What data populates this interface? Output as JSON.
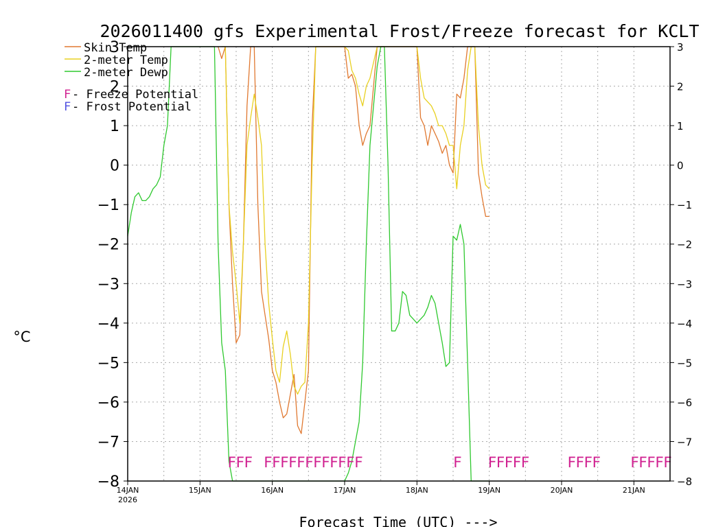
{
  "chart_data": {
    "type": "line",
    "title": "2026011400 gfs Experimental Frost/Freeze forecast for KCLT",
    "ylabel": "°C",
    "xlabel": "Forecast Time (UTC) --->",
    "ylim": [
      -8,
      3
    ],
    "yticks": [
      -8,
      -7,
      -6,
      -5,
      -4,
      -3,
      -2,
      -1,
      0,
      1,
      2,
      3
    ],
    "xlim_days": [
      0,
      7.5
    ],
    "xticks": [
      {
        "day": 0,
        "label": "14JAN",
        "sublabel": "2026"
      },
      {
        "day": 1,
        "label": "15JAN",
        "sublabel": ""
      },
      {
        "day": 2,
        "label": "16JAN",
        "sublabel": ""
      },
      {
        "day": 3,
        "label": "17JAN",
        "sublabel": ""
      },
      {
        "day": 4,
        "label": "18JAN",
        "sublabel": ""
      },
      {
        "day": 5,
        "label": "19JAN",
        "sublabel": ""
      },
      {
        "day": 6,
        "label": "20JAN",
        "sublabel": ""
      },
      {
        "day": 7,
        "label": "21JAN",
        "sublabel": ""
      }
    ],
    "grid": true,
    "legend": {
      "placement": "top-left",
      "entries": [
        {
          "label": "Skin Temp",
          "color": "#e07830"
        },
        {
          "label": "2-meter Temp",
          "color": "#e8d020"
        },
        {
          "label": "2-meter Dewp",
          "color": "#2ec82e"
        }
      ],
      "markers": [
        {
          "letter": "F",
          "text": " - Freeze Potential",
          "color": "#d02090"
        },
        {
          "letter": "F",
          "text": " - Frost Potential",
          "color": "#5050e0"
        }
      ]
    },
    "series": [
      {
        "name": "Skin Temp",
        "color": "#e07830",
        "x": [
          1.25,
          1.3,
          1.35,
          1.4,
          1.45,
          1.5,
          1.55,
          1.6,
          1.65,
          1.7,
          1.75,
          1.8,
          1.85,
          1.9,
          1.95,
          2.0,
          2.05,
          2.1,
          2.15,
          2.2,
          2.25,
          2.3,
          2.35,
          2.4,
          2.45,
          2.5,
          2.55,
          2.6,
          2.65,
          2.7,
          2.75,
          2.8,
          3.0,
          3.05,
          3.1,
          3.15,
          3.2,
          3.25,
          3.3,
          3.35,
          3.4,
          3.45,
          3.5,
          4.0,
          4.05,
          4.1,
          4.15,
          4.2,
          4.25,
          4.3,
          4.35,
          4.4,
          4.45,
          4.5,
          4.55,
          4.6,
          4.65,
          4.7,
          4.75,
          4.8,
          4.85,
          4.9,
          4.95,
          5.0
        ],
        "y": [
          3.0,
          2.7,
          3.0,
          -1.0,
          -3.0,
          -4.5,
          -4.3,
          -2.0,
          1.5,
          3.0,
          3.0,
          -1.0,
          -3.2,
          -3.8,
          -4.4,
          -5.2,
          -5.5,
          -6.0,
          -6.4,
          -6.3,
          -5.8,
          -5.3,
          -6.6,
          -6.8,
          -6.0,
          -5.2,
          1.0,
          3.0,
          3.0,
          3.0,
          3.0,
          3.0,
          3.0,
          2.2,
          2.3,
          2.0,
          1.0,
          0.5,
          0.8,
          1.0,
          2.0,
          3.0,
          3.0,
          3.0,
          1.2,
          1.0,
          0.5,
          1.0,
          0.8,
          0.6,
          0.3,
          0.5,
          0.0,
          -0.2,
          1.8,
          1.7,
          2.2,
          3.0,
          3.0,
          3.0,
          -0.2,
          -0.8,
          -1.3,
          -1.3
        ]
      },
      {
        "name": "2-meter Temp",
        "color": "#e8d020",
        "x": [
          1.3,
          1.35,
          1.4,
          1.45,
          1.5,
          1.55,
          1.6,
          1.65,
          1.7,
          1.75,
          1.8,
          1.85,
          1.9,
          1.95,
          2.0,
          2.05,
          2.1,
          2.15,
          2.2,
          2.25,
          2.3,
          2.35,
          2.4,
          2.45,
          2.5,
          2.55,
          2.6,
          2.65,
          2.7,
          2.75,
          2.8,
          3.0,
          3.05,
          3.1,
          3.15,
          3.2,
          3.25,
          3.3,
          3.35,
          3.4,
          3.45,
          4.0,
          4.05,
          4.1,
          4.15,
          4.2,
          4.25,
          4.3,
          4.35,
          4.4,
          4.45,
          4.5,
          4.55,
          4.6,
          4.65,
          4.7,
          4.75,
          4.8,
          4.85,
          4.9,
          4.95,
          5.0
        ],
        "y": [
          3.0,
          3.0,
          -1.0,
          -2.2,
          -3.0,
          -4.0,
          -2.0,
          0.5,
          1.2,
          1.8,
          1.2,
          0.5,
          -2.0,
          -3.5,
          -4.4,
          -5.2,
          -5.5,
          -4.6,
          -4.2,
          -4.8,
          -5.6,
          -5.8,
          -5.6,
          -5.5,
          -4.0,
          0.0,
          3.0,
          3.0,
          3.0,
          3.0,
          3.0,
          3.0,
          2.9,
          2.4,
          2.2,
          1.8,
          1.5,
          2.0,
          2.2,
          2.6,
          3.0,
          3.0,
          2.2,
          1.7,
          1.6,
          1.5,
          1.3,
          1.0,
          1.0,
          0.8,
          0.5,
          0.5,
          -0.6,
          0.5,
          1.0,
          2.4,
          3.0,
          3.0,
          1.0,
          0.0,
          -0.5,
          -0.6
        ]
      },
      {
        "name": "2-meter Dewp",
        "color": "#2ec82e",
        "x": [
          0.0,
          0.05,
          0.1,
          0.15,
          0.2,
          0.25,
          0.3,
          0.35,
          0.4,
          0.45,
          0.5,
          0.55,
          0.6,
          0.65,
          0.7,
          0.75,
          0.8,
          1.2,
          1.25,
          1.3,
          1.35,
          1.4,
          1.45,
          3.0,
          3.05,
          3.1,
          3.15,
          3.2,
          3.25,
          3.3,
          3.35,
          3.4,
          3.45,
          3.5,
          3.55,
          3.6,
          3.65,
          3.7,
          3.75,
          3.8,
          3.85,
          3.9,
          3.95,
          4.0,
          4.05,
          4.1,
          4.15,
          4.2,
          4.25,
          4.3,
          4.35,
          4.4,
          4.45,
          4.5,
          4.55,
          4.6,
          4.65,
          4.7,
          4.75,
          4.8,
          4.85,
          4.9,
          4.95,
          5.0
        ],
        "y": [
          -1.8,
          -1.2,
          -0.8,
          -0.7,
          -0.9,
          -0.9,
          -0.8,
          -0.6,
          -0.5,
          -0.3,
          0.5,
          1.0,
          3.0,
          3.0,
          3.0,
          3.0,
          3.0,
          3.0,
          -2.0,
          -4.5,
          -5.2,
          -7.5,
          -8.0,
          -8.0,
          -7.8,
          -7.5,
          -7.0,
          -6.5,
          -5.0,
          -2.0,
          0.5,
          1.5,
          2.5,
          3.0,
          3.0,
          0.0,
          -4.2,
          -4.2,
          -4.0,
          -3.2,
          -3.3,
          -3.8,
          -3.9,
          -4.0,
          -3.9,
          -3.8,
          -3.6,
          -3.3,
          -3.5,
          -4.0,
          -4.5,
          -5.1,
          -5.0,
          -1.8,
          -1.9,
          -1.5,
          -2.0,
          -5.0,
          -8.0,
          -8.0,
          -8.0,
          -8.0,
          -8.0,
          -8.0
        ]
      }
    ],
    "freeze_markers": [
      {
        "x_start": 1.38,
        "count": 3
      },
      {
        "x_start": 1.88,
        "count": 12
      },
      {
        "x_start": 4.5,
        "count": 1
      },
      {
        "x_start": 4.98,
        "count": 5
      },
      {
        "x_start": 6.08,
        "count": 4
      },
      {
        "x_start": 6.95,
        "count": 5
      }
    ]
  }
}
